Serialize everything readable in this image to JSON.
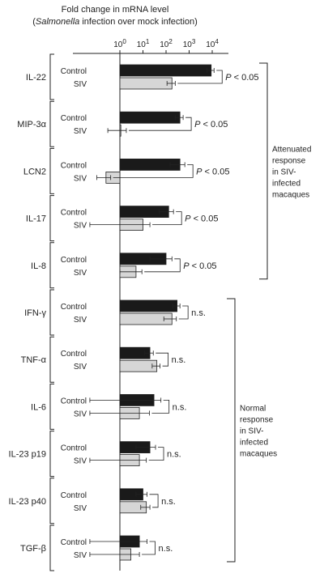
{
  "chart_data": {
    "type": "bar",
    "orientation": "horizontal",
    "x_scale": "log10",
    "title": "Fold change in mRNA level",
    "subtitle": "(Salmonella infection over mock infection)",
    "subtitle_italic_word": "Salmonella",
    "x_ticks": [
      {
        "value": 1,
        "label": "10^0"
      },
      {
        "value": 10,
        "label": "10^1"
      },
      {
        "value": 100,
        "label": "10^2"
      },
      {
        "value": 1000,
        "label": "10^3"
      },
      {
        "value": 10000,
        "label": "10^4"
      }
    ],
    "series_labels": [
      "Control",
      "SIV"
    ],
    "colors": {
      "Control": "#1a1a1a",
      "SIV": "#d6d6d6"
    },
    "genes": [
      {
        "name": "IL-22",
        "control": 9000,
        "control_err": 3000,
        "siv": 180,
        "siv_err": 70,
        "significance": "P < 0.05"
      },
      {
        "name": "MIP-3α",
        "control": 400,
        "control_err": 150,
        "siv": 1.1,
        "siv_err": 0.8,
        "significance": "P < 0.05"
      },
      {
        "name": "LCN2",
        "control": 400,
        "control_err": 250,
        "siv": 0.25,
        "siv_err": 0.15,
        "significance": "P < 0.05"
      },
      {
        "name": "IL-17",
        "control": 130,
        "control_err": 80,
        "siv": 10,
        "siv_err": 10,
        "significance": "P < 0.05"
      },
      {
        "name": "IL-8",
        "control": 100,
        "control_err": 80,
        "siv": 5,
        "siv_err": 4,
        "significance": "P < 0.05"
      },
      {
        "name": "IFN-γ",
        "control": 300,
        "control_err": 100,
        "siv": 180,
        "siv_err": 100,
        "significance": "n.s."
      },
      {
        "name": "TNF-α",
        "control": 20,
        "control_err": 8,
        "siv": 40,
        "siv_err": 15,
        "significance": "n.s."
      },
      {
        "name": "IL-6",
        "control": 30,
        "control_err": 30,
        "siv": 7,
        "siv_err": 12,
        "significance": "n.s."
      },
      {
        "name": "IL-23 p19",
        "control": 20,
        "control_err": 15,
        "siv": 7,
        "siv_err": 7,
        "significance": "n.s."
      },
      {
        "name": "IL-23 p40",
        "control": 10,
        "control_err": 5,
        "siv": 14,
        "siv_err": 6,
        "significance": "n.s."
      },
      {
        "name": "TGF-β",
        "control": 7,
        "control_err": 8,
        "siv": 3,
        "siv_err": 4,
        "significance": "n.s."
      }
    ],
    "groups": [
      {
        "label_lines": [
          "Attenuated",
          "response",
          "in SIV-",
          "infected",
          "macaques"
        ],
        "genes": [
          "IL-22",
          "MIP-3α",
          "LCN2",
          "IL-17",
          "IL-8"
        ]
      },
      {
        "label_lines": [
          "Normal",
          "response",
          "in SIV-",
          "infected",
          "macaques"
        ],
        "genes": [
          "IFN-γ",
          "TNF-α",
          "IL-6",
          "IL-23 p19",
          "IL-23 p40",
          "TGF-β"
        ]
      }
    ]
  }
}
